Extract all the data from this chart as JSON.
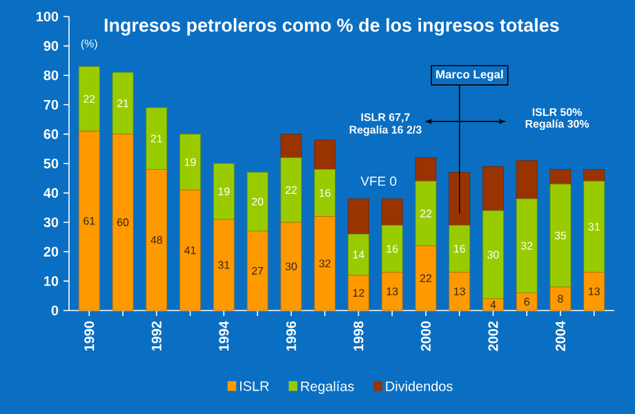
{
  "chart_data": {
    "type": "bar",
    "stacked": true,
    "title": "Ingresos petroleros como % de los ingresos totales",
    "categories": [
      "1990",
      null,
      "1992",
      null,
      "1994",
      null,
      "1996",
      null,
      "1998",
      null,
      "2000",
      null,
      "2002",
      null,
      "2004",
      null
    ],
    "series": [
      {
        "name": "ISLR",
        "color": "#ff9900",
        "values": [
          61,
          60,
          48,
          41,
          31,
          27,
          30,
          32,
          12,
          13,
          22,
          13,
          4,
          6,
          8,
          13
        ],
        "value_labels": [
          "61",
          "60",
          "48",
          "41",
          "31",
          "27",
          "30",
          "32",
          "12",
          "13",
          "22",
          "13",
          "4",
          "6",
          "8",
          "13"
        ]
      },
      {
        "name": "Regalías",
        "color": "#99cc00",
        "values": [
          22,
          21,
          21,
          19,
          19,
          20,
          22,
          16,
          14,
          16,
          22,
          16,
          30,
          32,
          35,
          31
        ],
        "value_labels": [
          "22",
          "21",
          "21",
          "19",
          "19",
          "20",
          "22",
          "16",
          "14",
          "16",
          "22",
          "16",
          "30",
          "32",
          "35",
          "31"
        ]
      },
      {
        "name": "Dividendos",
        "color": "#993300",
        "values": [
          0,
          0,
          0,
          0,
          0,
          0,
          8,
          10,
          12,
          9,
          8,
          18,
          15,
          13,
          5,
          4
        ]
      }
    ],
    "ylim": [
      0,
      100
    ],
    "yticks": [
      0,
      10,
      20,
      30,
      40,
      50,
      60,
      70,
      80,
      90,
      100
    ],
    "legend": "bottom",
    "annotations": [
      "(%)",
      "Marco Legal",
      "ISLR 67,7",
      "Regalía 16 2/3",
      "ISLR 50%",
      "Regalía 30%",
      "VFE  0"
    ]
  }
}
